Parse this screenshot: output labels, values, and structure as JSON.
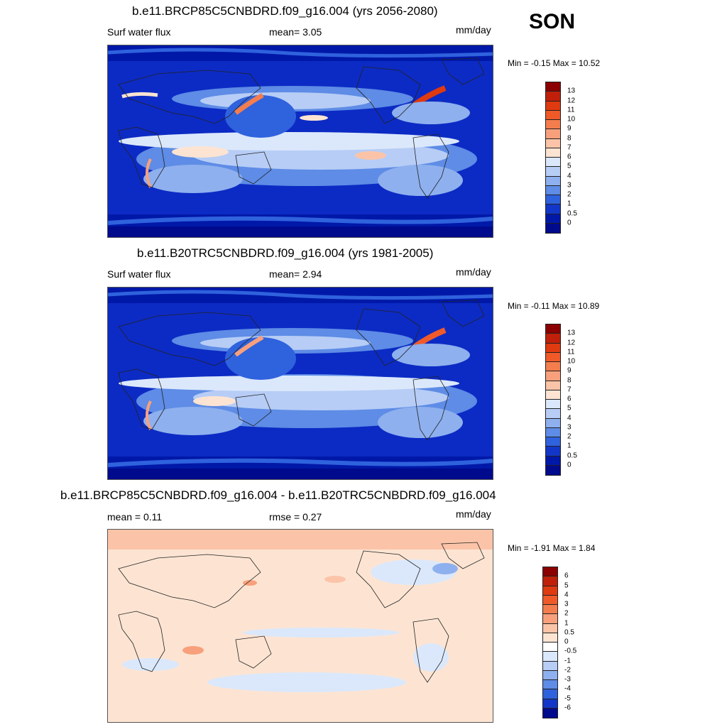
{
  "season": "SON",
  "panels": [
    {
      "title": "b.e11.BRCP85C5CNBDRD.f09_g16.004 (yrs 2056-2080)",
      "left_label": "Surf water flux",
      "center_label": "mean=   3.05",
      "units": "mm/day",
      "minmax": "Min =  -0.15 Max =  10.52",
      "kind": "abs"
    },
    {
      "title": "b.e11.B20TRC5CNBDRD.f09_g16.004 (yrs 1981-2005)",
      "left_label": "Surf water flux",
      "center_label": "mean=   2.94",
      "units": "mm/day",
      "minmax": "Min =  -0.11 Max =  10.89",
      "kind": "abs"
    },
    {
      "title": "b.e11.BRCP85C5CNBDRD.f09_g16.004 - b.e11.B20TRC5CNBDRD.f09_g16.004",
      "left_label": "mean =   0.11",
      "center_label": "rmse =   0.27",
      "units": "mm/day",
      "minmax": "Min =  -1.91 Max =   1.84",
      "kind": "diff"
    }
  ],
  "colorbars": {
    "abs": {
      "labels": [
        "13",
        "12",
        "11",
        "10",
        "9",
        "8",
        "7",
        "6",
        "5",
        "4",
        "3",
        "2",
        "1",
        "0.5",
        "0"
      ],
      "colors": [
        "#8b0000",
        "#c0200a",
        "#e03a10",
        "#f05a28",
        "#f47d4e",
        "#f8a07c",
        "#fbc4a8",
        "#fde4d2",
        "#dbe8fb",
        "#b7cdf6",
        "#8eb0ee",
        "#5e8ce6",
        "#2f62dd",
        "#1237c8",
        "#0018a8",
        "#000a8c"
      ]
    },
    "diff": {
      "labels": [
        "6",
        "5",
        "4",
        "3",
        "2",
        "1",
        "0.5",
        "0",
        "-0.5",
        "-1",
        "-2",
        "-3",
        "-4",
        "-5",
        "-6"
      ],
      "colors": [
        "#8b0000",
        "#c0200a",
        "#e03a10",
        "#f05a28",
        "#f47d4e",
        "#f8a07c",
        "#fbc4a8",
        "#fde4d2",
        "#ffffff",
        "#dbe8fb",
        "#b7cdf6",
        "#8eb0ee",
        "#5e8ce6",
        "#2f62dd",
        "#1237c8",
        "#000a8c"
      ]
    }
  }
}
